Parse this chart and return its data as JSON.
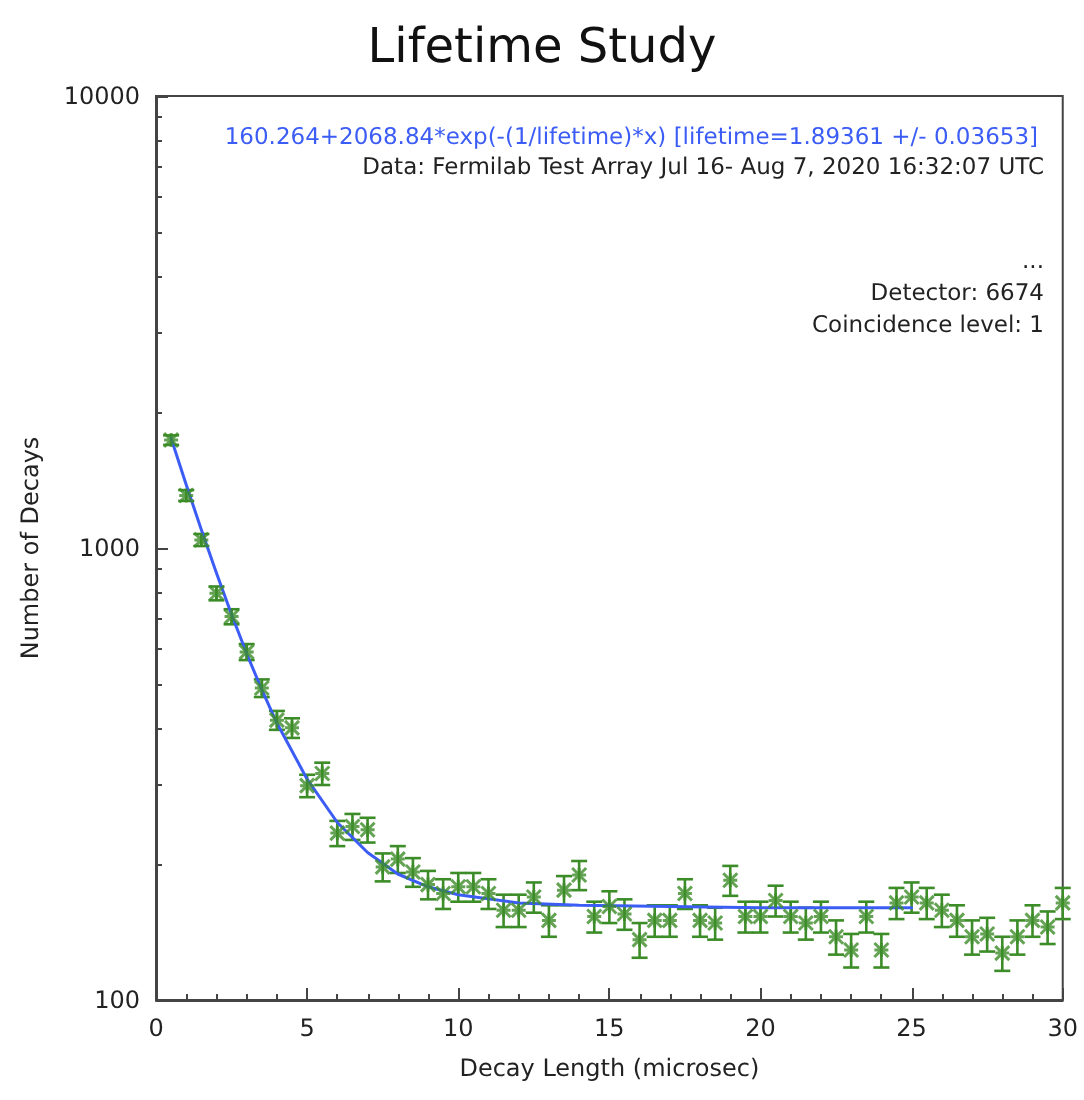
{
  "chart_data": {
    "type": "scatter",
    "title": "Lifetime Study",
    "xlabel": "Decay Length (microsec)",
    "ylabel": "Number of Decays",
    "annotations": [
      "Data: Fermilab Test Array Jul 16- Aug 7, 2020 16:32:07 UTC",
      "...",
      "Detector: 6674",
      "Coincidence level: 1"
    ],
    "xlim": [
      0,
      30
    ],
    "xticks": [
      0,
      5,
      10,
      15,
      20,
      25,
      30
    ],
    "ylim": [
      100,
      10000
    ],
    "yticks": [
      100,
      1000,
      10000
    ],
    "log": "y",
    "grid": false,
    "legend": "top right",
    "series": [
      {
        "color": "#3c8c28",
        "marker": "cross",
        "x": [
          0.5,
          1,
          1.5,
          2,
          2.5,
          3,
          3.5,
          4,
          4.5,
          5,
          5.5,
          6,
          6.5,
          7,
          7.5,
          8,
          8.5,
          9,
          9.5,
          10,
          10.5,
          11,
          11.5,
          12,
          12.5,
          13,
          13.5,
          14,
          14.5,
          15,
          15.5,
          16,
          16.5,
          17,
          17.5,
          18,
          18.5,
          19,
          19.5,
          20,
          20.5,
          21,
          21.5,
          22,
          22.5,
          23,
          23.5,
          24,
          24.5,
          25,
          25.5,
          26,
          26.5,
          27,
          27.5,
          28,
          28.5,
          29,
          29.5,
          30
        ],
        "values": [
          1733,
          1307,
          1042,
          794,
          705,
          589,
          490,
          416,
          400,
          298,
          317,
          234,
          242,
          238,
          197,
          205,
          192,
          180,
          172,
          178,
          178,
          172,
          158,
          158,
          169,
          150,
          175,
          189,
          153,
          161,
          155,
          136,
          150,
          150,
          172,
          150,
          148,
          184,
          153,
          153,
          166,
          153,
          148,
          153,
          138,
          129,
          153,
          129,
          164,
          169,
          164,
          158,
          150,
          138,
          140,
          127,
          138,
          150,
          145,
          164
        ],
        "errors": [
          42,
          36,
          32,
          28,
          27,
          24,
          22,
          20,
          20,
          17,
          18,
          15,
          16,
          15,
          14,
          14,
          14,
          13,
          13,
          13,
          13,
          13,
          13,
          13,
          13,
          12,
          13,
          14,
          12,
          13,
          12,
          12,
          12,
          12,
          13,
          12,
          12,
          14,
          12,
          12,
          13,
          12,
          12,
          12,
          12,
          11,
          12,
          11,
          13,
          13,
          13,
          13,
          12,
          12,
          12,
          11,
          12,
          12,
          12,
          13
        ]
      },
      {
        "type": "line",
        "name": "160.264+2068.84*exp(-(1/lifetime)*x) [lifetime=1.89361 +/- 0.03653]",
        "color": "#3b5cf5",
        "marker": "none",
        "line_style": "solid",
        "x": [
          0.5,
          1,
          1.5,
          2,
          2.5,
          3,
          3.5,
          4,
          5,
          6,
          7,
          8,
          9,
          10,
          12,
          14,
          17,
          20,
          25
        ],
        "values": [
          1749,
          1380,
          1098,
          880,
          713,
          584,
          486,
          410,
          308,
          247,
          212,
          190,
          178,
          171,
          164,
          162,
          161,
          160,
          160
        ]
      }
    ]
  }
}
